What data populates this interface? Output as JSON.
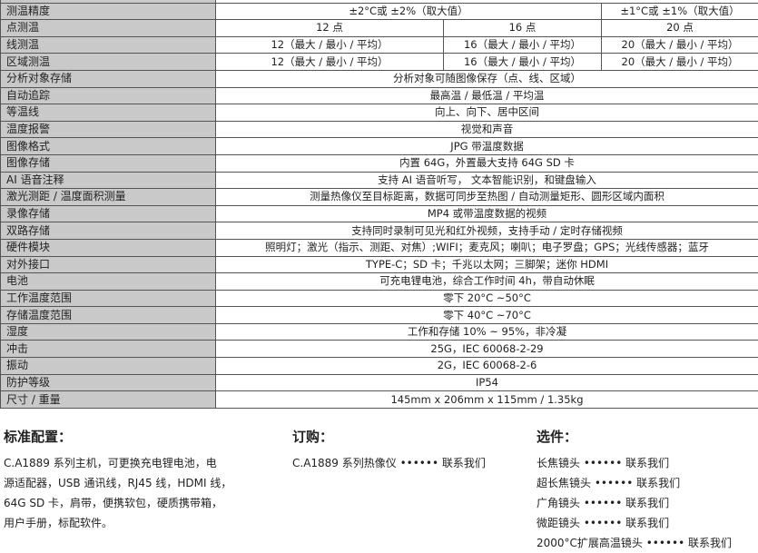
{
  "spec_table": {
    "rows": [
      {
        "label": "",
        "cells": [
          {
            "text": "",
            "span": 3
          }
        ]
      },
      {
        "label": "测温精度",
        "cells": [
          {
            "text": "±2°C或 ±2%（取大值）",
            "span": 2
          },
          {
            "text": "±1°C或 ±1%（取大值）",
            "span": 1
          }
        ]
      },
      {
        "label": "点测温",
        "cells": [
          {
            "text": "12 点",
            "span": 1
          },
          {
            "text": "16 点",
            "span": 1
          },
          {
            "text": "20 点",
            "span": 1
          }
        ]
      },
      {
        "label": "线测温",
        "cells": [
          {
            "text": "12（最大 / 最小 / 平均）",
            "span": 1
          },
          {
            "text": "16（最大 / 最小 / 平均）",
            "span": 1
          },
          {
            "text": "20（最大 / 最小 / 平均）",
            "span": 1
          }
        ]
      },
      {
        "label": "区域测温",
        "cells": [
          {
            "text": "12（最大 / 最小 / 平均）",
            "span": 1
          },
          {
            "text": "16（最大 / 最小 / 平均）",
            "span": 1
          },
          {
            "text": "20（最大 / 最小 / 平均）",
            "span": 1
          }
        ]
      },
      {
        "label": "分析对象存储",
        "cells": [
          {
            "text": "分析对象可随图像保存（点、线、区域）",
            "span": 3
          }
        ]
      },
      {
        "label": "自动追踪",
        "cells": [
          {
            "text": "最高温 / 最低温 / 平均温",
            "span": 3
          }
        ]
      },
      {
        "label": "等温线",
        "cells": [
          {
            "text": "向上、向下、居中区间",
            "span": 3
          }
        ]
      },
      {
        "label": "温度报警",
        "cells": [
          {
            "text": "视觉和声音",
            "span": 3
          }
        ]
      },
      {
        "label": "图像格式",
        "cells": [
          {
            "text": "JPG 带温度数据",
            "span": 3
          }
        ]
      },
      {
        "label": "图像存储",
        "cells": [
          {
            "text": "内置 64G，外置最大支持 64G SD 卡",
            "span": 3
          }
        ]
      },
      {
        "label": "AI 语音注释",
        "cells": [
          {
            "text": "支持 AI 语音听写， 文本智能识别，和键盘输入",
            "span": 3
          }
        ]
      },
      {
        "label": "激光测距 / 温度面积测量",
        "cells": [
          {
            "text": "测量热像仪至目标距离，数据可同步至热图 / 自动测量矩形、圆形区域内面积",
            "span": 3
          }
        ]
      },
      {
        "label": "录像存储",
        "cells": [
          {
            "text": "MP4 或带温度数据的视频",
            "span": 3
          }
        ]
      },
      {
        "label": "双路存储",
        "cells": [
          {
            "text": "支持同时录制可见光和红外视频，支持手动 / 定时存储视频",
            "span": 3
          }
        ]
      },
      {
        "label": "硬件模块",
        "cells": [
          {
            "text": "照明灯；激光（指示、测距、对焦）;WIFI；麦克风；喇叭；电子罗盘；GPS；光线传感器；蓝牙",
            "span": 3
          }
        ]
      },
      {
        "label": "对外接口",
        "cells": [
          {
            "text": "TYPE-C；SD 卡；千兆以太网；三脚架；迷你 HDMI",
            "span": 3
          }
        ]
      },
      {
        "label": "电池",
        "cells": [
          {
            "text": "可充电锂电池，综合工作时间 4h，带自动休眠",
            "span": 3
          }
        ]
      },
      {
        "label": "工作温度范围",
        "cells": [
          {
            "text": "零下 20°C ~50°C",
            "span": 3
          }
        ]
      },
      {
        "label": "存储温度范围",
        "cells": [
          {
            "text": "零下 40°C ~70°C",
            "span": 3
          }
        ]
      },
      {
        "label": "湿度",
        "cells": [
          {
            "text": "工作和存储 10% ~ 95%，非冷凝",
            "span": 3
          }
        ]
      },
      {
        "label": "冲击",
        "cells": [
          {
            "text": "25G，IEC 60068-2-29",
            "span": 3
          }
        ]
      },
      {
        "label": "振动",
        "cells": [
          {
            "text": "2G，IEC 60068-2-6",
            "span": 3
          }
        ]
      },
      {
        "label": "防护等级",
        "cells": [
          {
            "text": "IP54",
            "span": 3
          }
        ]
      },
      {
        "label": "尺寸 / 重量",
        "cells": [
          {
            "text": "145mm x 206mm x 115mm / 1.35kg",
            "span": 3
          }
        ]
      }
    ]
  },
  "standard_config": {
    "title": "标准配置：",
    "lines": [
      "C.A1889 系列主机，可更换充电锂电池，电",
      "源适配器，USB 通讯线，RJ45 线，HDMI 线，",
      "64G SD 卡，肩带，便携软包，硬质携带箱，",
      "用户手册，标配软件。"
    ]
  },
  "order": {
    "title": "订购：",
    "lines": [
      "C.A1889 系列热像仪 •••••• 联系我们"
    ]
  },
  "options": {
    "title": "选件：",
    "lines": [
      "长焦镜头 •••••• 联系我们",
      "超长焦镜头 •••••• 联系我们",
      "广角镜头 •••••• 联系我们",
      "微距镜头 •••••• 联系我们",
      "2000°C扩展高温镜头 •••••• 联系我们"
    ]
  }
}
